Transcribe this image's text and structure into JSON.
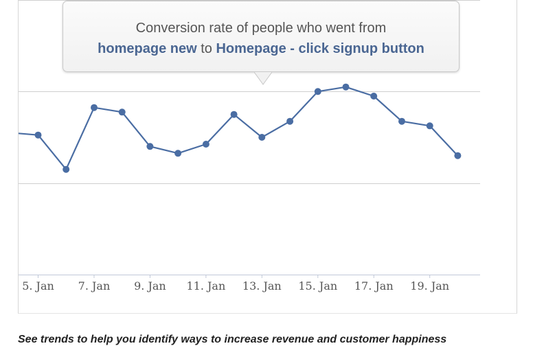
{
  "tooltip": {
    "line1": "Conversion rate of people who went from",
    "from_step": "homepage new",
    "connector": "to",
    "to_step": "Homepage - click signup button"
  },
  "caption": "See trends to help you identify ways to increase revenue and customer happiness",
  "colors": {
    "line": "#4a6da3",
    "grid": "#cfcfcf",
    "axis": "#c0c8d8",
    "tick_text": "#555555",
    "tooltip_bold": "#4a6692"
  },
  "chart_data": {
    "type": "line",
    "x_tick_labels": [
      "5. Jan",
      "7. Jan",
      "9. Jan",
      "11. Jan",
      "13. Jan",
      "15. Jan",
      "17. Jan",
      "19. Jan"
    ],
    "x": [
      4,
      5,
      6,
      7,
      8,
      9,
      10,
      11,
      12,
      13,
      14,
      15,
      16,
      17,
      18,
      19,
      20
    ],
    "series": [
      {
        "values": [
          3.1,
          3.05,
          2.3,
          3.65,
          3.55,
          2.8,
          2.65,
          2.85,
          3.5,
          3.0,
          3.35,
          4.0,
          4.1,
          3.9,
          3.35,
          3.25,
          2.6
        ]
      }
    ],
    "xlim": [
      4.3,
      20.8
    ],
    "ylim": [
      0,
      6
    ],
    "grid": true,
    "y_gridlines": [
      2,
      4
    ],
    "legend": "none"
  }
}
